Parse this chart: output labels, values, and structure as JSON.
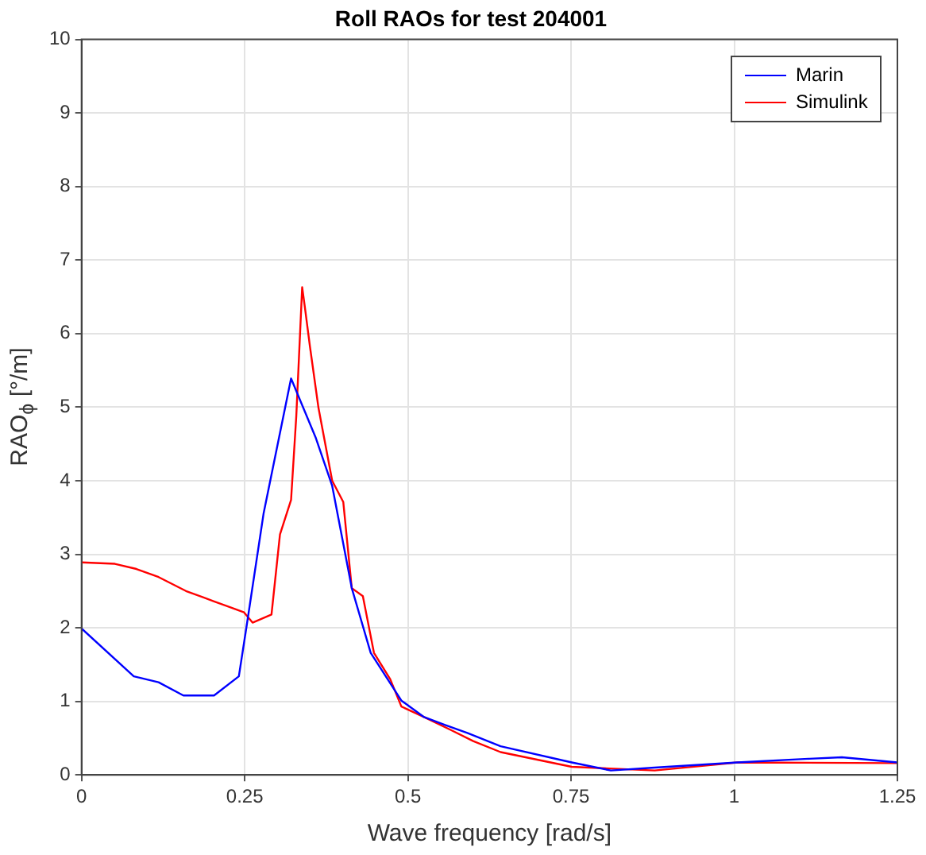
{
  "chart_data": {
    "type": "line",
    "title": "Roll RAOs for test 204001",
    "xlabel": "Wave frequency [rad/s]",
    "ylabel": "RAO$_{ϕ}$ [°/m]",
    "xlim": [
      0,
      1.25
    ],
    "ylim": [
      0,
      10
    ],
    "xticks": [
      0,
      0.25,
      0.5,
      0.75,
      1,
      1.25
    ],
    "yticks": [
      0,
      1,
      2,
      3,
      4,
      5,
      6,
      7,
      8,
      9,
      10
    ],
    "grid": true,
    "legend": "top right",
    "marker": "none",
    "line_style": "solid",
    "series": [
      {
        "name": "Marin",
        "color": "#0000ff",
        "x": [
          0,
          0.08,
          0.118,
          0.156,
          0.203,
          0.241,
          0.253,
          0.279,
          0.321,
          0.359,
          0.384,
          0.414,
          0.443,
          0.49,
          0.524,
          0.557,
          0.591,
          0.642,
          0.751,
          0.811,
          0.878,
          1.005,
          1.115,
          1.165,
          1.25
        ],
        "values": [
          1.99,
          1.34,
          1.26,
          1.08,
          1.08,
          1.34,
          2.03,
          3.56,
          5.39,
          4.58,
          3.93,
          2.54,
          1.66,
          1.01,
          0.79,
          0.68,
          0.57,
          0.39,
          0.17,
          0.06,
          0.1,
          0.17,
          0.22,
          0.24,
          0.17
        ]
      },
      {
        "name": "Simulink",
        "color": "#ff0000",
        "x": [
          0,
          0.051,
          0.084,
          0.118,
          0.16,
          0.203,
          0.249,
          0.262,
          0.291,
          0.304,
          0.321,
          0.329,
          0.338,
          0.342,
          0.35,
          0.363,
          0.384,
          0.401,
          0.414,
          0.431,
          0.448,
          0.473,
          0.49,
          0.524,
          0.566,
          0.6,
          0.642,
          0.751,
          0.878,
          1.005,
          1.25
        ],
        "values": [
          2.89,
          2.87,
          2.8,
          2.69,
          2.5,
          2.36,
          2.21,
          2.07,
          2.18,
          3.27,
          3.74,
          4.88,
          6.63,
          6.37,
          5.82,
          4.99,
          4.0,
          3.71,
          2.54,
          2.43,
          1.66,
          1.3,
          0.93,
          0.79,
          0.61,
          0.46,
          0.31,
          0.11,
          0.06,
          0.17,
          0.16
        ]
      }
    ]
  }
}
